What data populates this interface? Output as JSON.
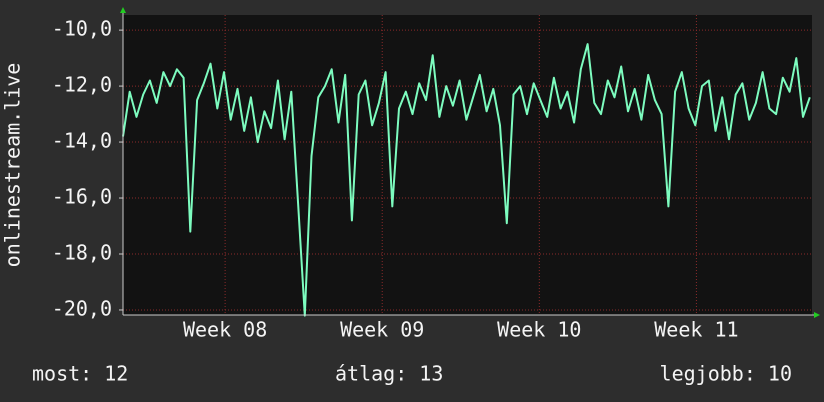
{
  "chart_data": {
    "type": "line",
    "y_label": "onlinestream.live",
    "xlim": [
      0,
      30.7
    ],
    "xticks": [
      {
        "value": 4.55,
        "label": "Week 08"
      },
      {
        "value": 11.55,
        "label": "Week 09"
      },
      {
        "value": 18.55,
        "label": "Week 10"
      },
      {
        "value": 25.55,
        "label": "Week 11"
      }
    ],
    "ylim": [
      -20.18,
      -9.46
    ],
    "yticks": [
      {
        "value": -10,
        "label": "-10,0"
      },
      {
        "value": -12,
        "label": "-12,0"
      },
      {
        "value": -14,
        "label": "-14,0"
      },
      {
        "value": -16,
        "label": "-16,0"
      },
      {
        "value": -18,
        "label": "-18,0"
      },
      {
        "value": -20,
        "label": "-20,0"
      }
    ],
    "grid": true,
    "series": [
      {
        "color": "#7dfcbf",
        "x": [
          0,
          0.3,
          0.6,
          0.9,
          1.2,
          1.5,
          1.8,
          2.1,
          2.4,
          2.7,
          3,
          3.3,
          3.6,
          3.9,
          4.2,
          4.5,
          4.8,
          5.1,
          5.4,
          5.7,
          6,
          6.3,
          6.6,
          6.9,
          7.2,
          7.5,
          7.8,
          8.1,
          8.4,
          8.7,
          9,
          9.3,
          9.6,
          9.9,
          10.2,
          10.5,
          10.8,
          11.1,
          11.4,
          11.7,
          12,
          12.3,
          12.6,
          12.9,
          13.2,
          13.5,
          13.8,
          14.1,
          14.4,
          14.7,
          15,
          15.3,
          15.6,
          15.9,
          16.2,
          16.5,
          16.8,
          17.1,
          17.4,
          17.7,
          18,
          18.3,
          18.6,
          18.9,
          19.2,
          19.5,
          19.8,
          20.1,
          20.4,
          20.7,
          21,
          21.3,
          21.6,
          21.9,
          22.2,
          22.5,
          22.8,
          23.1,
          23.4,
          23.7,
          24,
          24.3,
          24.6,
          24.9,
          25.2,
          25.5,
          25.8,
          26.1,
          26.4,
          26.7,
          27,
          27.3,
          27.6,
          27.9,
          28.2,
          28.5,
          28.8,
          29.1,
          29.4,
          29.7,
          30,
          30.3,
          30.6
        ],
        "values": [
          -13.8,
          -12.2,
          -13.1,
          -12.3,
          -11.8,
          -12.6,
          -11.5,
          -12.0,
          -11.4,
          -11.7,
          -17.2,
          -12.5,
          -11.9,
          -11.2,
          -12.8,
          -11.5,
          -13.2,
          -12.1,
          -13.6,
          -12.4,
          -14.0,
          -12.9,
          -13.5,
          -11.8,
          -13.9,
          -12.2,
          -16.2,
          -20.2,
          -14.5,
          -12.4,
          -12.0,
          -11.4,
          -13.3,
          -11.6,
          -16.8,
          -12.3,
          -11.8,
          -13.4,
          -12.6,
          -11.5,
          -16.3,
          -12.8,
          -12.2,
          -13.0,
          -11.9,
          -12.5,
          -10.9,
          -13.1,
          -12.0,
          -12.7,
          -11.8,
          -13.2,
          -12.4,
          -11.6,
          -12.9,
          -12.1,
          -13.4,
          -16.9,
          -12.3,
          -12.0,
          -13.0,
          -11.9,
          -12.5,
          -13.1,
          -11.7,
          -12.8,
          -12.2,
          -13.3,
          -11.4,
          -10.5,
          -12.6,
          -13.0,
          -11.8,
          -12.4,
          -11.3,
          -12.9,
          -12.1,
          -13.2,
          -11.6,
          -12.5,
          -13.0,
          -16.3,
          -12.2,
          -11.5,
          -12.8,
          -13.4,
          -12.0,
          -11.8,
          -13.6,
          -12.4,
          -13.9,
          -12.3,
          -11.9,
          -13.2,
          -12.6,
          -11.5,
          -12.8,
          -13.0,
          -11.7,
          -12.2,
          -11.0,
          -13.1,
          -12.4
        ]
      }
    ],
    "annotations": [
      "most: 12",
      "átlag: 13",
      "legjobb: 10"
    ]
  }
}
